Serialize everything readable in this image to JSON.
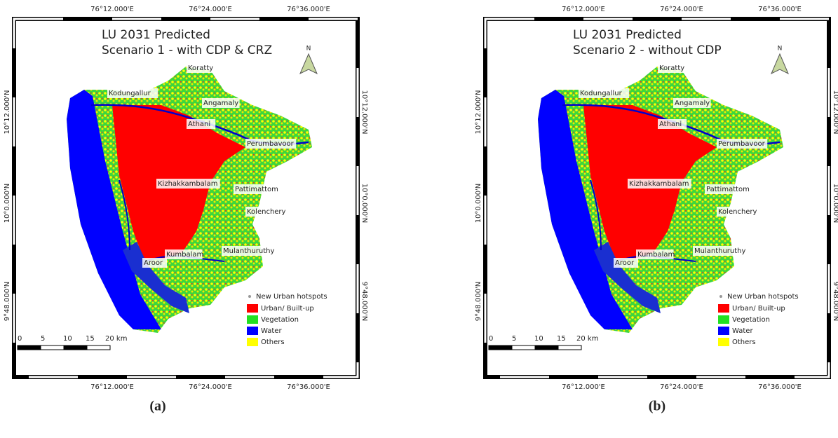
{
  "panels": [
    {
      "title": "LU 2031 Predicted",
      "subtitle": "Scenario 1 - with CDP & CRZ",
      "caption": "(a)",
      "north": "N",
      "top_axis": [
        "76°12.000'E",
        "76°24.000'E",
        "76°36.000'E"
      ],
      "bottom_axis": [
        "76°12.000'E",
        "76°24.000'E",
        "76°36.000'E"
      ],
      "left_axis": [
        "10°12.000'N",
        "10°0.000'N",
        "9°48.000'N"
      ],
      "right_axis": [
        "10°12.000'N",
        "10°0.000'N",
        "9°48.000'N"
      ],
      "places": [
        "Koratty",
        "Kodungallur",
        "Angamaly",
        "Athani",
        "Perumbavoor",
        "Kizhakkambalam",
        "Pattimattom",
        "Kolenchery",
        "Mulanthuruthy",
        "Kumbalam",
        "Aroor"
      ],
      "hotspot_label": "New Urban hotspots",
      "legend": [
        {
          "name": "Urban/ Built-up",
          "color": "#ff0000"
        },
        {
          "name": "Vegetation",
          "color": "#22e022"
        },
        {
          "name": "Water",
          "color": "#0000ff"
        },
        {
          "name": "Others",
          "color": "#ffff00"
        }
      ],
      "scale": [
        "0",
        "5",
        "10",
        "15",
        "20 km"
      ]
    },
    {
      "title": "LU 2031 Predicted",
      "subtitle": "Scenario 2 - without CDP",
      "caption": "(b)",
      "north": "N",
      "top_axis": [
        "76°12.000'E",
        "76°24.000'E",
        "76°36.000'E"
      ],
      "bottom_axis": [
        "76°12.000'E",
        "76°24.000'E",
        "76°36.000'E"
      ],
      "left_axis": [
        "10°12.000'N",
        "10°0.000'N",
        "9°48.000'N"
      ],
      "right_axis": [
        "10°12.000'N",
        "10°0.000'N",
        "9°48.000'N"
      ],
      "places": [
        "Koratty",
        "Kodungallur",
        "Angamaly",
        "Athani",
        "Perumbavoor",
        "Kizhakkambalam",
        "Pattimattom",
        "Kolenchery",
        "Mulanthuruthy",
        "Kumbalam",
        "Aroor"
      ],
      "hotspot_label": "New Urban hotspots",
      "legend": [
        {
          "name": "Urban/ Built-up",
          "color": "#ff0000"
        },
        {
          "name": "Vegetation",
          "color": "#22e022"
        },
        {
          "name": "Water",
          "color": "#0000ff"
        },
        {
          "name": "Others",
          "color": "#ffff00"
        }
      ],
      "scale": [
        "0",
        "5",
        "10",
        "15",
        "20 km"
      ]
    }
  ]
}
